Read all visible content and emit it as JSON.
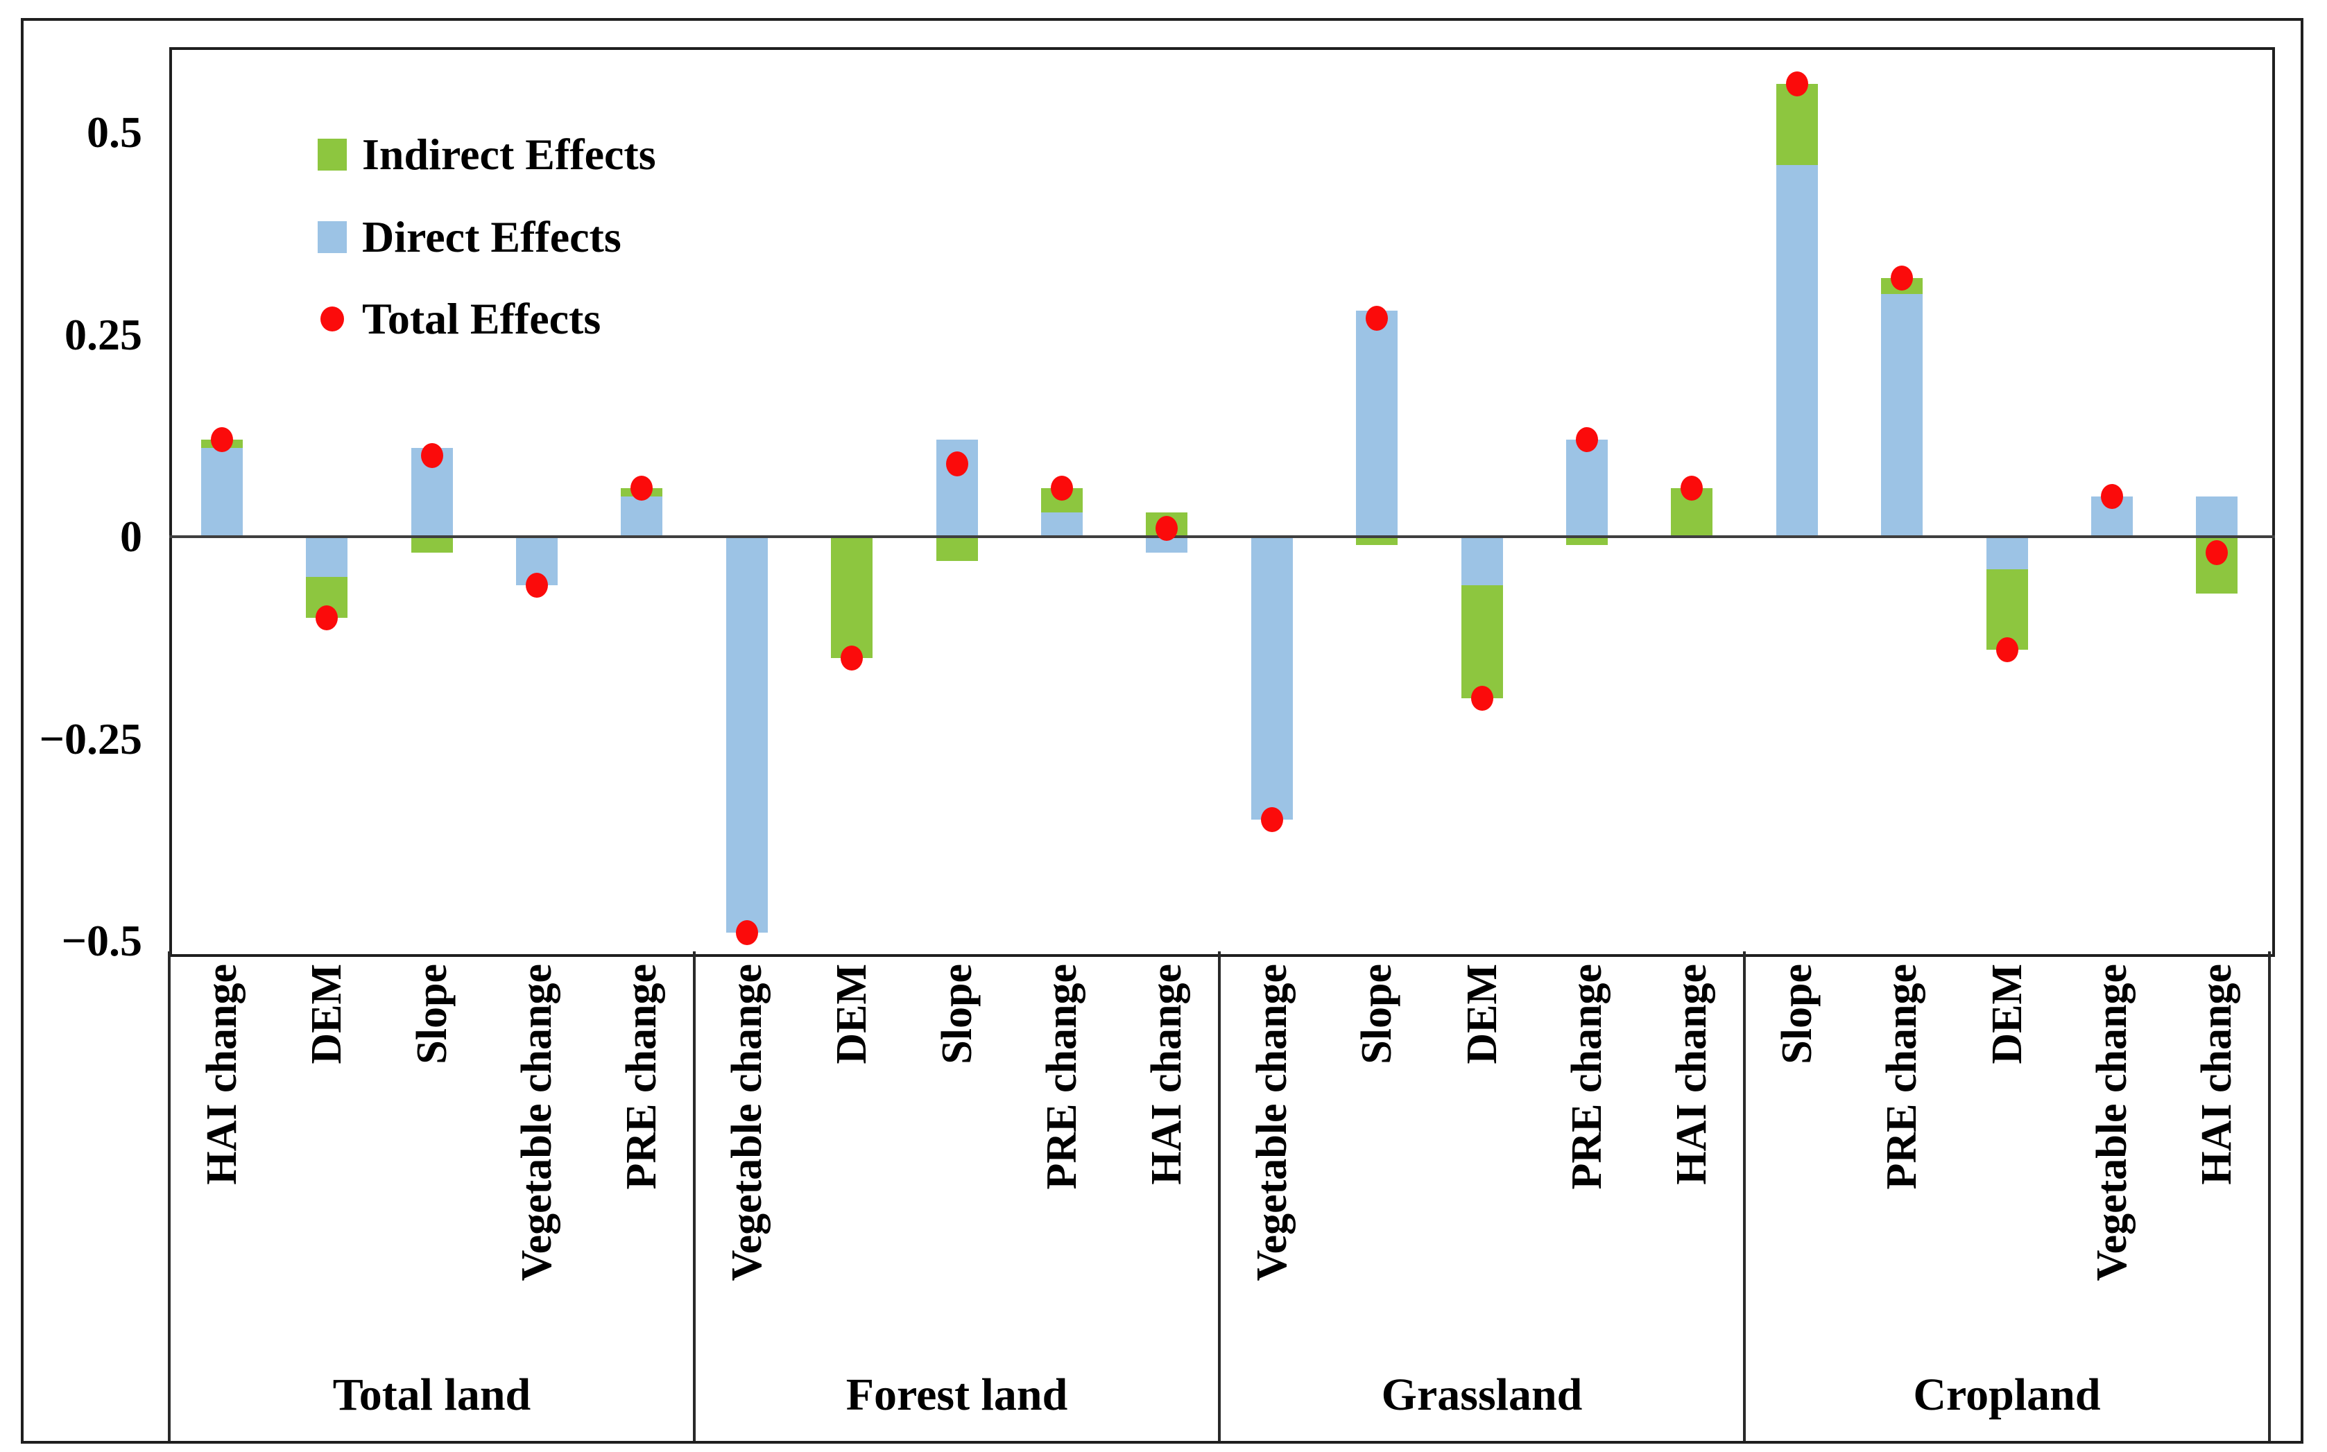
{
  "chart_data": {
    "type": "bar",
    "stacked": true,
    "overlay": "scatter-total-effects",
    "title": "",
    "xlabel": "",
    "ylabel": "",
    "ylim": [
      -0.515,
      0.605
    ],
    "grid": false,
    "legend_position": "top-left-inside",
    "y_ticks": {
      "values": [
        0.5,
        0.25,
        0,
        -0.25,
        -0.5
      ],
      "labels": [
        "0.5",
        "0.25",
        "0",
        "−0.25",
        "−0.5"
      ]
    },
    "series_legend": [
      {
        "name": "Indirect Effects",
        "marker": "square",
        "color": "#8DC63F"
      },
      {
        "name": "Direct Effects",
        "marker": "square",
        "color": "#9CC3E5"
      },
      {
        "name": "Total Effects",
        "marker": "dot",
        "color": "#FB0B0B"
      }
    ],
    "colors": {
      "indirect": "#8DC63F",
      "direct": "#9CC3E5",
      "total": "#FB0B0B",
      "zero_line": "#3f3f3f",
      "frame": "#1f1f1f"
    },
    "groups": [
      {
        "name": "Total land",
        "bars": [
          {
            "label": "HAI change",
            "direct": 0.11,
            "indirect": 0.01,
            "total": 0.12
          },
          {
            "label": "DEM",
            "direct": -0.05,
            "indirect": -0.05,
            "total": -0.1
          },
          {
            "label": "Slope",
            "direct": 0.11,
            "indirect": -0.02,
            "total": 0.1
          },
          {
            "label": "Vegetable change",
            "direct": -0.06,
            "indirect": 0.0,
            "total": -0.06
          },
          {
            "label": "PRE change",
            "direct": 0.05,
            "indirect": 0.01,
            "total": 0.06
          }
        ]
      },
      {
        "name": "Forest land",
        "bars": [
          {
            "label": "Vegetable change",
            "direct": -0.49,
            "indirect": 0.0,
            "total": -0.49
          },
          {
            "label": "DEM",
            "direct": 0.0,
            "indirect": -0.15,
            "total": -0.15
          },
          {
            "label": "Slope",
            "direct": 0.12,
            "indirect": -0.03,
            "total": 0.09
          },
          {
            "label": "PRE change",
            "direct": 0.03,
            "indirect": 0.03,
            "total": 0.06
          },
          {
            "label": "HAI change",
            "direct": -0.02,
            "indirect": 0.03,
            "total": 0.01
          }
        ]
      },
      {
        "name": "Grassland",
        "bars": [
          {
            "label": "Vegetable change",
            "direct": -0.35,
            "indirect": 0.0,
            "total": -0.35
          },
          {
            "label": "Slope",
            "direct": 0.28,
            "indirect": -0.01,
            "total": 0.27
          },
          {
            "label": "DEM",
            "direct": -0.06,
            "indirect": -0.14,
            "total": -0.2
          },
          {
            "label": "PRE change",
            "direct": 0.12,
            "indirect": -0.01,
            "total": 0.12
          },
          {
            "label": "HAI change",
            "direct": 0.0,
            "indirect": 0.06,
            "total": 0.06
          }
        ]
      },
      {
        "name": "Cropland",
        "bars": [
          {
            "label": "Slope",
            "direct": 0.46,
            "indirect": 0.1,
            "total": 0.56
          },
          {
            "label": "PRE change",
            "direct": 0.3,
            "indirect": 0.02,
            "total": 0.32
          },
          {
            "label": "DEM",
            "direct": -0.04,
            "indirect": -0.1,
            "total": -0.14
          },
          {
            "label": "Vegetable change",
            "direct": 0.05,
            "indirect": 0.0,
            "total": 0.05
          },
          {
            "label": "HAI change",
            "direct": 0.05,
            "indirect": -0.07,
            "total": -0.02
          }
        ]
      }
    ]
  }
}
